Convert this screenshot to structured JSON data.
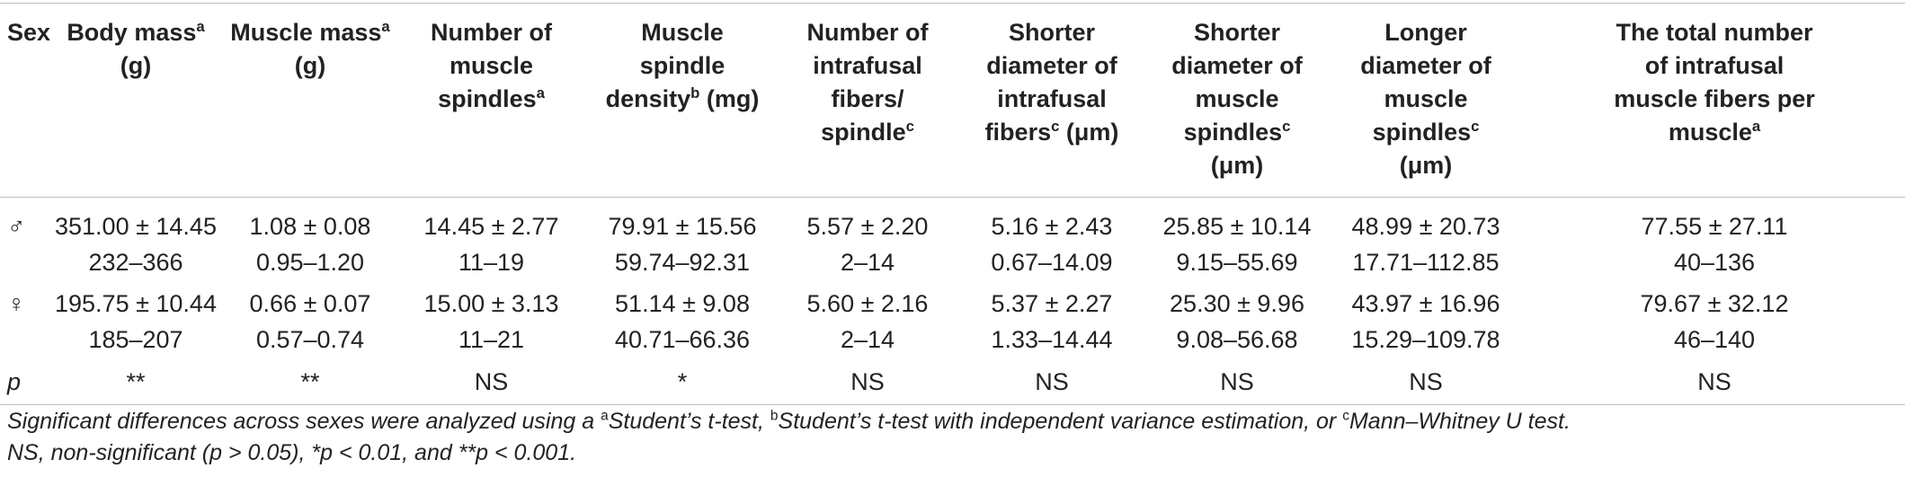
{
  "table": {
    "headers": [
      {
        "text": "Sex",
        "sup": ""
      },
      {
        "text": "Body mass",
        "sup": "a",
        "suffix": " (g)"
      },
      {
        "text": "Muscle mass",
        "sup": "a",
        "suffix": " (g)"
      },
      {
        "text": "Number of muscle spindles",
        "sup": "a",
        "suffix": ""
      },
      {
        "text": "Muscle spindle density",
        "sup": "b",
        "suffix": " (mg)"
      },
      {
        "text": "Number of intrafusal fibers/ spindle",
        "sup": "c",
        "suffix": ""
      },
      {
        "text": "Shorter diameter of intrafusal fibers",
        "sup": "c",
        "suffix": " (μm)"
      },
      {
        "text": "Shorter diameter of muscle spindles",
        "sup": "c",
        "suffix": " (μm)"
      },
      {
        "text": "Longer diameter of muscle spindles",
        "sup": "c",
        "suffix": " (μm)"
      },
      {
        "text": "The total number of intrafusal muscle fibers per muscle",
        "sup": "a",
        "suffix": ""
      }
    ],
    "rows": [
      {
        "sex": "♂",
        "cells": [
          {
            "mean": "351.00 ± 14.45",
            "range": "232–366"
          },
          {
            "mean": "1.08 ± 0.08",
            "range": "0.95–1.20"
          },
          {
            "mean": "14.45 ± 2.77",
            "range": "11–19"
          },
          {
            "mean": "79.91 ± 15.56",
            "range": "59.74–92.31"
          },
          {
            "mean": "5.57 ± 2.20",
            "range": "2–14"
          },
          {
            "mean": "5.16 ± 2.43",
            "range": "0.67–14.09"
          },
          {
            "mean": "25.85 ± 10.14",
            "range": "9.15–55.69"
          },
          {
            "mean": "48.99 ± 20.73",
            "range": "17.71–112.85"
          },
          {
            "mean": "77.55 ± 27.11",
            "range": "40–136"
          }
        ]
      },
      {
        "sex": "♀",
        "cells": [
          {
            "mean": "195.75 ± 10.44",
            "range": "185–207"
          },
          {
            "mean": "0.66 ± 0.07",
            "range": "0.57–0.74"
          },
          {
            "mean": "15.00 ± 3.13",
            "range": "11–21"
          },
          {
            "mean": "51.14 ± 9.08",
            "range": "40.71–66.36"
          },
          {
            "mean": "5.60 ± 2.16",
            "range": "2–14"
          },
          {
            "mean": "5.37 ± 2.27",
            "range": "1.33–14.44"
          },
          {
            "mean": "25.30 ± 9.96",
            "range": "9.08–56.68"
          },
          {
            "mean": "43.97 ± 16.96",
            "range": "15.29–109.78"
          },
          {
            "mean": "79.67 ± 32.12",
            "range": "46–140"
          }
        ]
      }
    ],
    "p_row": {
      "label": "p",
      "values": [
        "**",
        "**",
        "NS",
        "*",
        "NS",
        "NS",
        "NS",
        "NS",
        "NS"
      ]
    }
  },
  "footnote": {
    "line1_intro": "Significant differences across sexes were analyzed using a ",
    "sup_a": "a",
    "test_a": "Student’s t-test, ",
    "sup_b": "b",
    "test_b": "Student’s t-test with independent variance estimation, or ",
    "sup_c": "c",
    "test_c": "Mann–Whitney U test.",
    "line2": "NS, non-significant (p > 0.05), *p < 0.01, and **p < 0.001."
  }
}
